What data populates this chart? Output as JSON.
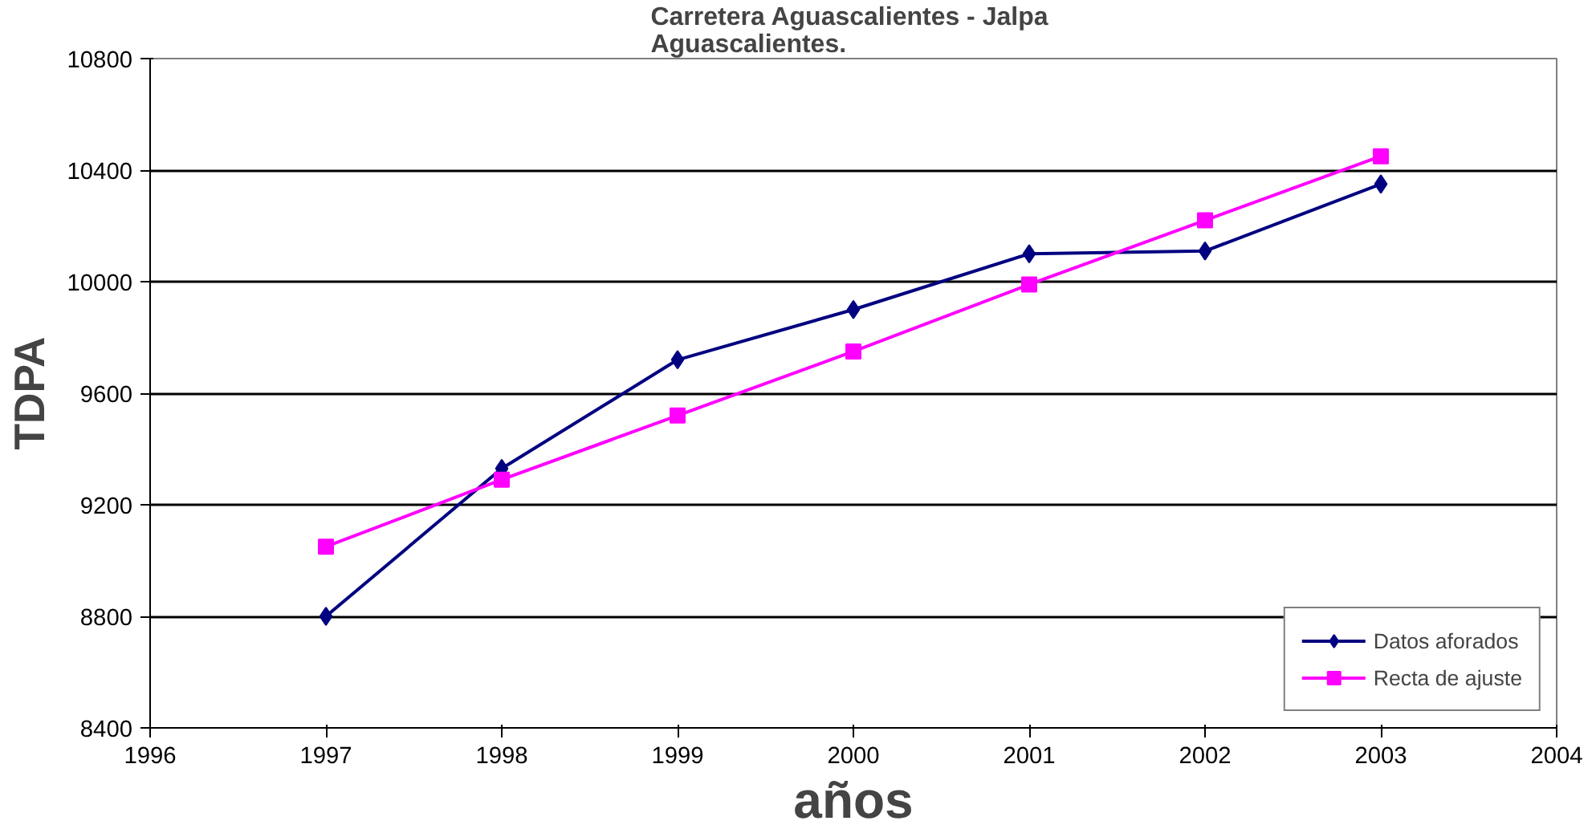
{
  "chart_data": {
    "type": "line",
    "title": "Carretera Aguascalientes  - Jalpa\nAguascalientes.",
    "xlabel": "años",
    "ylabel": "TDPA",
    "x": [
      1997,
      1998,
      1999,
      2000,
      2001,
      2002,
      2003
    ],
    "series": [
      {
        "name": "Datos aforados",
        "color": "#000080",
        "marker": "diamond",
        "values": [
          8800,
          9330,
          9720,
          9900,
          10100,
          10110,
          10350
        ]
      },
      {
        "name": "Recta de ajuste",
        "color": "#ff00ff",
        "marker": "square",
        "values": [
          9050,
          9290,
          9520,
          9750,
          9990,
          10220,
          10450
        ]
      }
    ],
    "xlim": [
      1996,
      2004
    ],
    "xticks": [
      1996,
      1997,
      1998,
      1999,
      2000,
      2001,
      2002,
      2003,
      2004
    ],
    "ylim": [
      8400,
      10800
    ],
    "yticks": [
      8400,
      8800,
      9200,
      9600,
      10000,
      10400,
      10800
    ],
    "grid": "y",
    "legend": "bottom right"
  }
}
